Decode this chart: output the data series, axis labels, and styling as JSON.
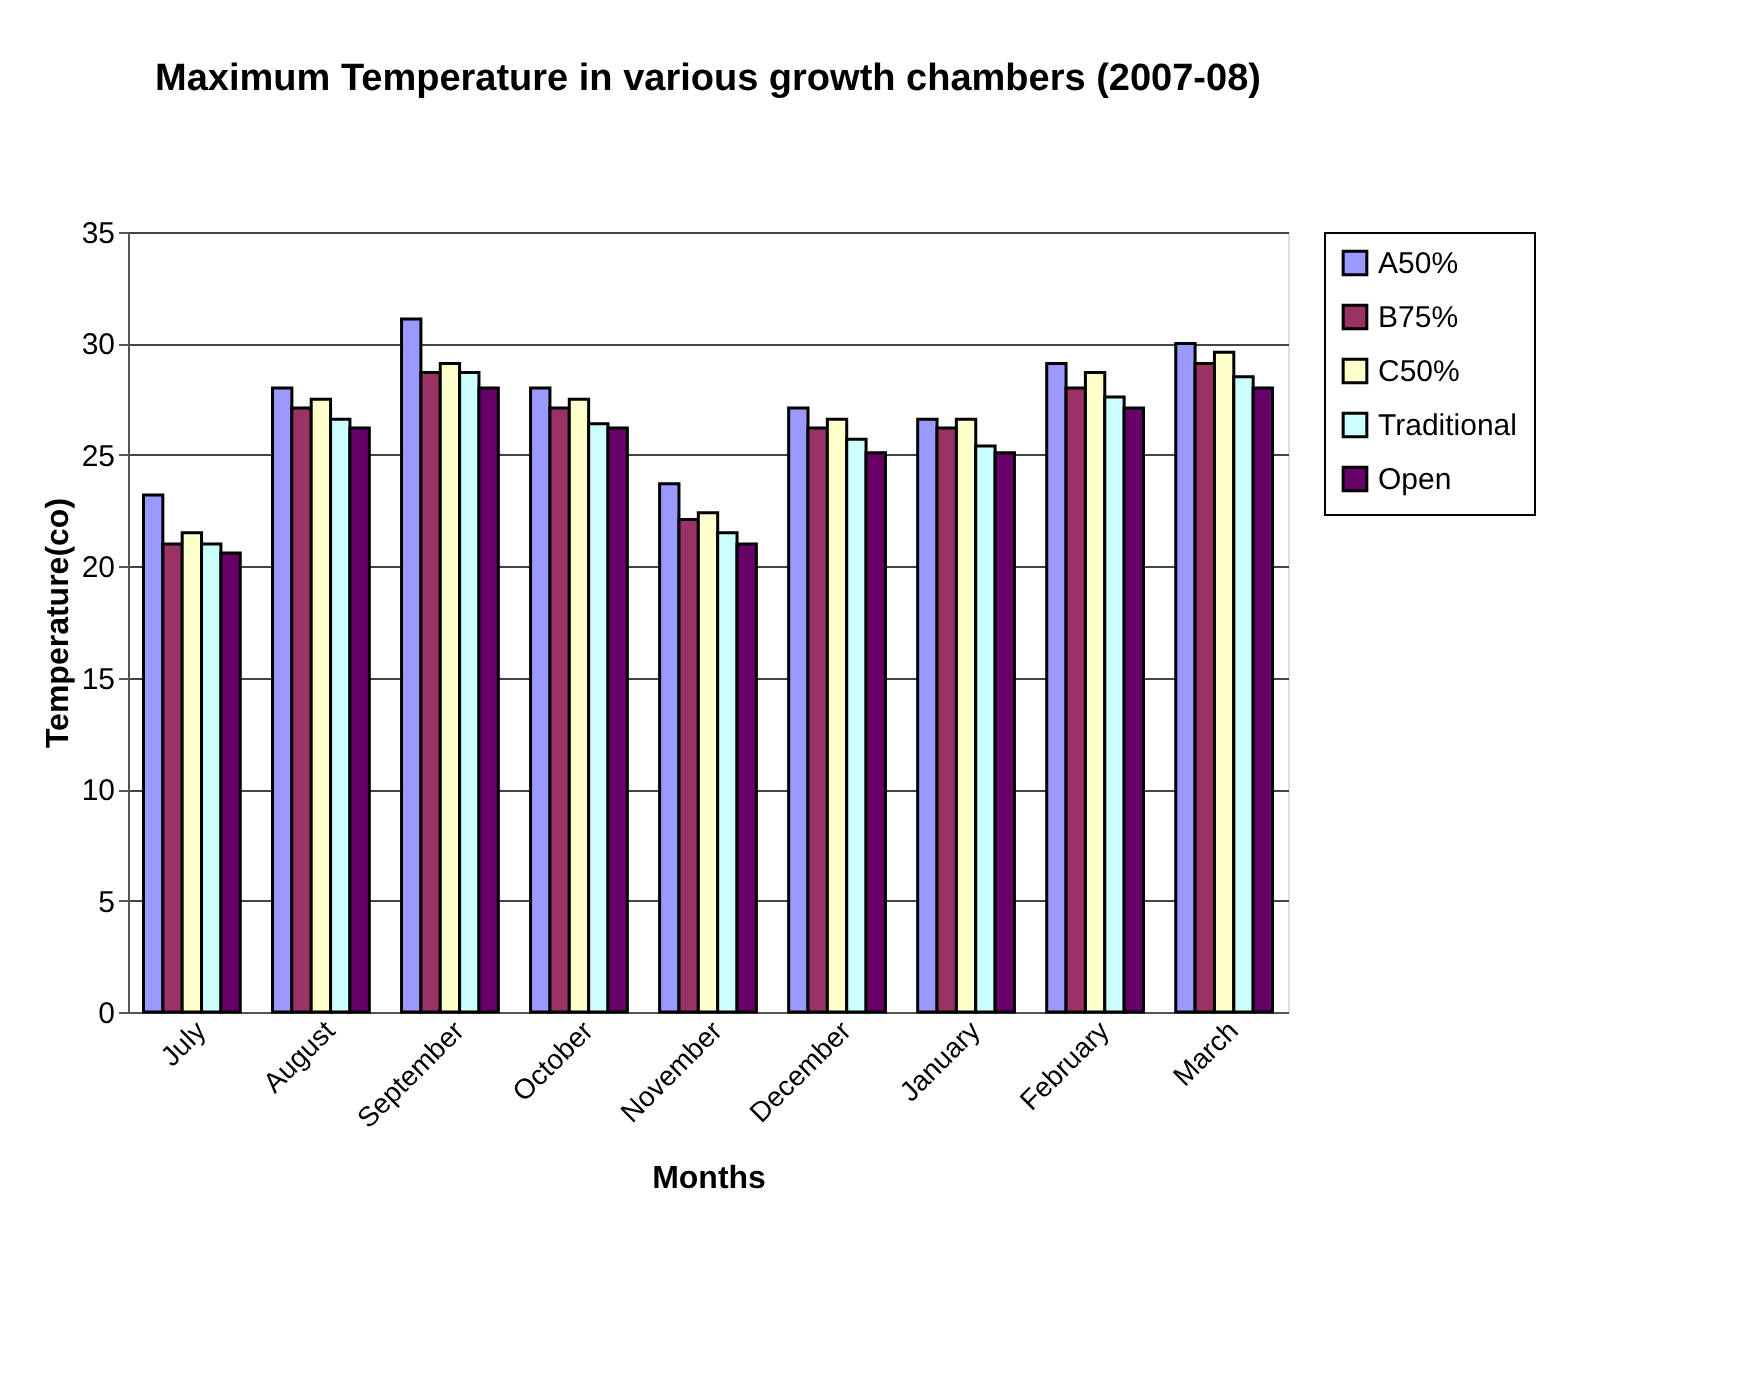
{
  "chart_data": {
    "type": "bar",
    "title": "Maximum Temperature in various growth chambers (2007-08)",
    "xlabel": "Months",
    "ylabel": "Temperature(co)",
    "categories": [
      "July",
      "August",
      "September",
      "October",
      "November",
      "December",
      "January",
      "February",
      "March"
    ],
    "series": [
      {
        "name": "A50%",
        "color": "#9999ff",
        "values": [
          23.2,
          28.0,
          31.1,
          28.0,
          23.7,
          27.1,
          26.6,
          29.1,
          30.0
        ]
      },
      {
        "name": "B75%",
        "color": "#993366",
        "values": [
          21.0,
          27.1,
          28.7,
          27.1,
          22.1,
          26.2,
          26.2,
          28.0,
          29.1
        ]
      },
      {
        "name": "C50%",
        "color": "#ffffcc",
        "values": [
          21.5,
          27.5,
          29.1,
          27.5,
          22.4,
          26.6,
          26.6,
          28.7,
          29.6
        ]
      },
      {
        "name": "Traditional",
        "color": "#ccffff",
        "values": [
          21.0,
          26.6,
          28.7,
          26.4,
          21.5,
          25.7,
          25.4,
          27.6,
          28.5
        ]
      },
      {
        "name": "Open",
        "color": "#660066",
        "values": [
          20.6,
          26.2,
          28.0,
          26.2,
          21.0,
          25.1,
          25.1,
          27.1,
          28.0
        ]
      }
    ],
    "ylim": [
      0,
      35
    ],
    "yticks": [
      0,
      5,
      10,
      15,
      20,
      25,
      30,
      35
    ],
    "grid": "y",
    "legend": "right"
  }
}
